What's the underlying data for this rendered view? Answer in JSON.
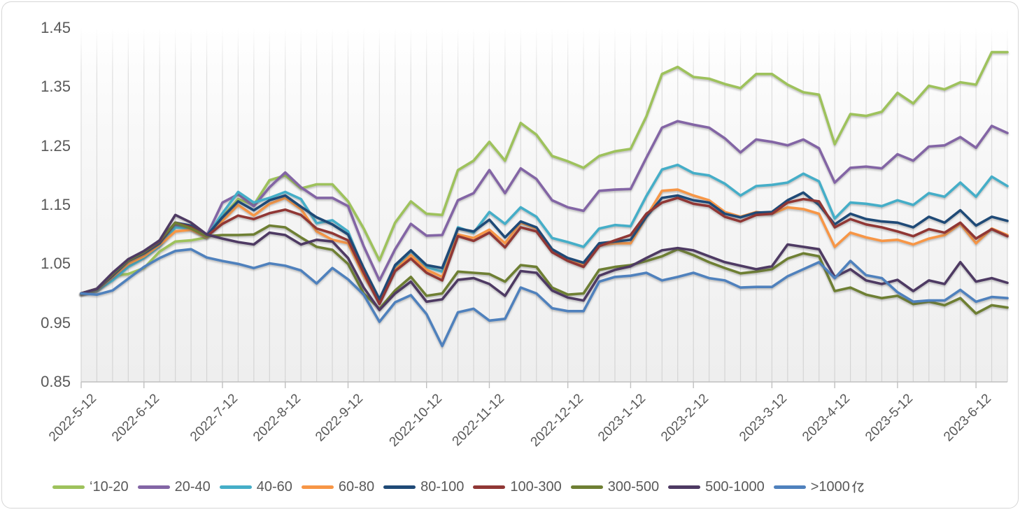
{
  "chart_data": {
    "type": "line",
    "title": "",
    "x_axis_label": "",
    "y_axis_label": "",
    "n_points": 60,
    "x_unit": "weekly observations",
    "ylim": [
      0.85,
      1.45
    ],
    "grid": "vertical-only",
    "legend_position": "bottom",
    "y_tick_labels": [
      "1.45",
      "1.35",
      "1.25",
      "1.15",
      "1.05",
      "0.95",
      "0.85"
    ],
    "x_tick_labels": [
      "2022-5-12",
      "2022-6-12",
      "2022-7-12",
      "2022-8-12",
      "2022-9-12",
      "2022-10-12",
      "2022-11-12",
      "2022-12-12",
      "2023-1-12",
      "2023-2-12",
      "2023-3-12",
      "2023-4-12",
      "2023-5-12",
      "2023-6-12"
    ],
    "x_tick_indices": [
      0,
      4,
      9,
      13,
      17,
      22,
      26,
      31,
      35,
      39,
      44,
      48,
      52,
      57
    ],
    "series": [
      {
        "name": "‘10-20",
        "color": "#9EC25C",
        "values": [
          1.0,
          1.005,
          1.03,
          1.033,
          1.043,
          1.071,
          1.088,
          1.09,
          1.095,
          1.13,
          1.16,
          1.15,
          1.192,
          1.2,
          1.178,
          1.185,
          1.185,
          1.156,
          1.11,
          1.056,
          1.12,
          1.156,
          1.135,
          1.133,
          1.209,
          1.225,
          1.257,
          1.225,
          1.289,
          1.269,
          1.233,
          1.224,
          1.213,
          1.233,
          1.241,
          1.245,
          1.3,
          1.372,
          1.384,
          1.367,
          1.364,
          1.355,
          1.348,
          1.372,
          1.372,
          1.354,
          1.341,
          1.337,
          1.253,
          1.304,
          1.301,
          1.308,
          1.34,
          1.322,
          1.352,
          1.346,
          1.358,
          1.354,
          1.409,
          1.409
        ]
      },
      {
        "name": "20-40",
        "color": "#8365A5",
        "values": [
          1.0,
          1.006,
          1.025,
          1.048,
          1.062,
          1.082,
          1.115,
          1.112,
          1.098,
          1.154,
          1.168,
          1.148,
          1.18,
          1.205,
          1.18,
          1.162,
          1.162,
          1.148,
          1.08,
          1.022,
          1.075,
          1.118,
          1.098,
          1.099,
          1.158,
          1.17,
          1.209,
          1.17,
          1.212,
          1.194,
          1.158,
          1.146,
          1.14,
          1.174,
          1.176,
          1.177,
          1.23,
          1.281,
          1.292,
          1.286,
          1.281,
          1.263,
          1.239,
          1.261,
          1.257,
          1.251,
          1.261,
          1.246,
          1.188,
          1.213,
          1.215,
          1.212,
          1.236,
          1.225,
          1.249,
          1.251,
          1.265,
          1.247,
          1.284,
          1.272
        ]
      },
      {
        "name": "40-60",
        "color": "#45AEC8",
        "values": [
          1.0,
          1.005,
          1.022,
          1.045,
          1.06,
          1.08,
          1.112,
          1.11,
          1.096,
          1.136,
          1.172,
          1.154,
          1.162,
          1.172,
          1.16,
          1.119,
          1.124,
          1.105,
          1.04,
          0.99,
          1.042,
          1.072,
          1.045,
          1.037,
          1.112,
          1.103,
          1.138,
          1.118,
          1.146,
          1.13,
          1.094,
          1.087,
          1.079,
          1.11,
          1.116,
          1.114,
          1.165,
          1.21,
          1.218,
          1.204,
          1.2,
          1.186,
          1.166,
          1.182,
          1.184,
          1.188,
          1.203,
          1.19,
          1.127,
          1.154,
          1.152,
          1.148,
          1.158,
          1.15,
          1.17,
          1.164,
          1.188,
          1.164,
          1.198,
          1.182
        ]
      },
      {
        "name": "60-80",
        "color": "#F79646",
        "values": [
          1.0,
          1.006,
          1.028,
          1.05,
          1.063,
          1.082,
          1.105,
          1.108,
          1.095,
          1.123,
          1.15,
          1.132,
          1.152,
          1.162,
          1.143,
          1.105,
          1.091,
          1.085,
          1.03,
          0.985,
          1.04,
          1.065,
          1.04,
          1.028,
          1.1,
          1.094,
          1.108,
          1.085,
          1.12,
          1.11,
          1.075,
          1.058,
          1.048,
          1.082,
          1.085,
          1.085,
          1.13,
          1.174,
          1.176,
          1.166,
          1.158,
          1.138,
          1.13,
          1.138,
          1.135,
          1.146,
          1.143,
          1.135,
          1.079,
          1.103,
          1.095,
          1.089,
          1.091,
          1.083,
          1.093,
          1.099,
          1.118,
          1.085,
          1.11,
          1.099
        ]
      },
      {
        "name": "80-100",
        "color": "#1F4A77",
        "values": [
          1.0,
          1.007,
          1.03,
          1.055,
          1.068,
          1.085,
          1.12,
          1.115,
          1.098,
          1.129,
          1.156,
          1.141,
          1.158,
          1.166,
          1.147,
          1.129,
          1.117,
          1.1,
          1.043,
          0.99,
          1.048,
          1.073,
          1.048,
          1.043,
          1.11,
          1.105,
          1.125,
          1.095,
          1.122,
          1.112,
          1.075,
          1.06,
          1.052,
          1.085,
          1.088,
          1.091,
          1.13,
          1.162,
          1.166,
          1.158,
          1.154,
          1.135,
          1.129,
          1.137,
          1.138,
          1.158,
          1.171,
          1.15,
          1.117,
          1.135,
          1.126,
          1.122,
          1.12,
          1.112,
          1.13,
          1.12,
          1.141,
          1.115,
          1.13,
          1.123
        ]
      },
      {
        "name": "100-300",
        "color": "#903735",
        "values": [
          1.0,
          1.008,
          1.032,
          1.058,
          1.07,
          1.088,
          1.12,
          1.112,
          1.097,
          1.118,
          1.132,
          1.126,
          1.136,
          1.142,
          1.133,
          1.11,
          1.102,
          1.09,
          1.035,
          0.982,
          1.038,
          1.059,
          1.035,
          1.022,
          1.097,
          1.089,
          1.103,
          1.078,
          1.112,
          1.105,
          1.07,
          1.055,
          1.045,
          1.08,
          1.09,
          1.099,
          1.135,
          1.154,
          1.162,
          1.152,
          1.148,
          1.13,
          1.122,
          1.133,
          1.135,
          1.154,
          1.16,
          1.156,
          1.112,
          1.126,
          1.117,
          1.112,
          1.105,
          1.097,
          1.109,
          1.103,
          1.12,
          1.093,
          1.109,
          1.097
        ]
      },
      {
        "name": "300-500",
        "color": "#6E7F33",
        "values": [
          1.0,
          1.008,
          1.033,
          1.056,
          1.07,
          1.09,
          1.12,
          1.11,
          1.097,
          1.099,
          1.099,
          1.1,
          1.115,
          1.112,
          1.095,
          1.079,
          1.074,
          1.05,
          1.0,
          0.974,
          1.005,
          1.028,
          0.996,
          1.0,
          1.037,
          1.035,
          1.033,
          1.02,
          1.048,
          1.045,
          1.01,
          0.998,
          1.0,
          1.04,
          1.045,
          1.048,
          1.055,
          1.063,
          1.075,
          1.065,
          1.053,
          1.043,
          1.034,
          1.037,
          1.041,
          1.059,
          1.068,
          1.063,
          1.004,
          1.01,
          0.998,
          0.992,
          0.996,
          0.982,
          0.986,
          0.98,
          0.992,
          0.966,
          0.98,
          0.976
        ]
      },
      {
        "name": "500-1000",
        "color": "#4E3A63",
        "values": [
          1.0,
          1.008,
          1.035,
          1.058,
          1.072,
          1.09,
          1.133,
          1.12,
          1.1,
          1.093,
          1.087,
          1.083,
          1.103,
          1.099,
          1.083,
          1.091,
          1.088,
          1.06,
          1.01,
          0.972,
          1.0,
          1.02,
          0.986,
          0.99,
          1.023,
          1.026,
          1.016,
          0.996,
          1.038,
          1.035,
          1.005,
          0.993,
          0.988,
          1.03,
          1.04,
          1.046,
          1.06,
          1.073,
          1.077,
          1.073,
          1.063,
          1.053,
          1.047,
          1.041,
          1.046,
          1.083,
          1.079,
          1.075,
          1.028,
          1.041,
          1.022,
          1.016,
          1.023,
          1.004,
          1.022,
          1.016,
          1.053,
          1.02,
          1.026,
          1.018
        ]
      },
      {
        "name": ">1000亿",
        "legend_text": ">1000",
        "cjk_suffix": "亿",
        "color": "#4F81BD",
        "values": [
          1.0,
          0.998,
          1.005,
          1.025,
          1.045,
          1.06,
          1.072,
          1.075,
          1.061,
          1.055,
          1.05,
          1.043,
          1.051,
          1.047,
          1.039,
          1.017,
          1.043,
          1.024,
          0.998,
          0.952,
          0.985,
          0.997,
          0.965,
          0.911,
          0.968,
          0.974,
          0.954,
          0.957,
          1.01,
          1.0,
          0.975,
          0.97,
          0.97,
          1.02,
          1.028,
          1.03,
          1.035,
          1.022,
          1.028,
          1.035,
          1.026,
          1.022,
          1.01,
          1.011,
          1.011,
          1.029,
          1.041,
          1.053,
          1.026,
          1.055,
          1.031,
          1.026,
          1.002,
          0.986,
          0.988,
          0.988,
          1.006,
          0.986,
          0.994,
          0.992
        ]
      }
    ],
    "colors": {
      "axis_text": "#595959",
      "gridline": "#d9d9d9",
      "axis_line": "#bfbfbf"
    }
  }
}
